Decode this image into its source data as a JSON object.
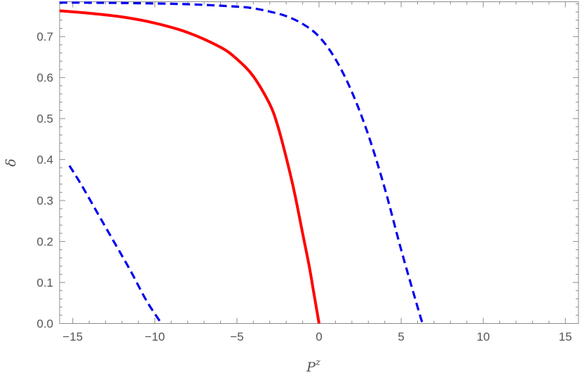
{
  "chart_data": {
    "type": "line",
    "title": "",
    "xlabel": "P",
    "xlabel_superscript": "z",
    "ylabel": "δ",
    "xlim": [
      -15.8,
      15.8
    ],
    "ylim": [
      0,
      0.785
    ],
    "xticks": [
      -15,
      -10,
      -5,
      0,
      5,
      10,
      15
    ],
    "xtick_labels": [
      "−15",
      "−10",
      "−5",
      "0",
      "5",
      "10",
      "15"
    ],
    "yticks": [
      0.0,
      0.1,
      0.2,
      0.3,
      0.4,
      0.5,
      0.6,
      0.7
    ],
    "ytick_labels": [
      "0.0",
      "0.1",
      "0.2",
      "0.3",
      "0.4",
      "0.5",
      "0.6",
      "0.7"
    ],
    "grid": false,
    "legend": "none",
    "series": [
      {
        "style": "solid",
        "color": "#ff0000",
        "x": [
          -15.8,
          -14,
          -12,
          -10,
          -8,
          -6,
          -5,
          -4,
          -3,
          -2.5,
          -2,
          -1.5,
          -1,
          -0.6,
          -0.3,
          0
        ],
        "y": [
          0.763,
          0.757,
          0.748,
          0.733,
          0.71,
          0.674,
          0.645,
          0.603,
          0.535,
          0.48,
          0.405,
          0.32,
          0.22,
          0.14,
          0.07,
          0.0
        ]
      },
      {
        "style": "dashed",
        "color": "#0000ee",
        "x": [
          -15.8,
          -12,
          -8,
          -5,
          -4,
          -3,
          -2,
          -1,
          0,
          1,
          2,
          3,
          4,
          5,
          6,
          6.3
        ],
        "y": [
          0.783,
          0.782,
          0.779,
          0.773,
          0.769,
          0.761,
          0.75,
          0.731,
          0.7,
          0.645,
          0.565,
          0.46,
          0.33,
          0.18,
          0.04,
          0.0
        ]
      },
      {
        "style": "dashed",
        "color": "#0000ee",
        "x": [
          -15.2,
          -14.5,
          -13.5,
          -12.5,
          -11.5,
          -10.5,
          -9.6
        ],
        "y": [
          0.385,
          0.34,
          0.27,
          0.2,
          0.13,
          0.055,
          0.0
        ]
      }
    ]
  }
}
